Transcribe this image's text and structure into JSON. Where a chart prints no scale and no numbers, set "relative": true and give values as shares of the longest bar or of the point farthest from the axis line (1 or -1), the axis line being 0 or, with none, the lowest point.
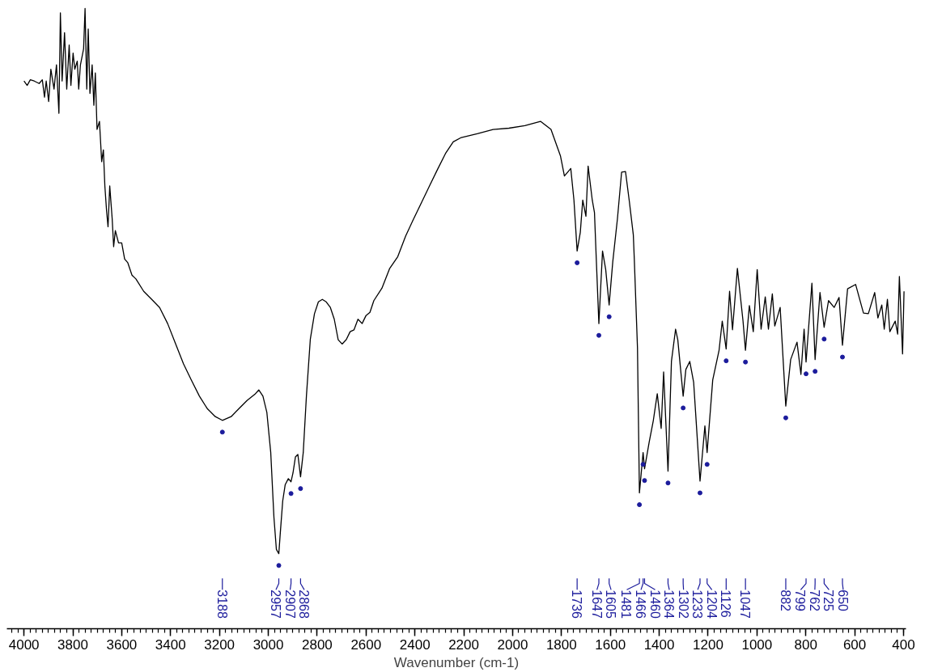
{
  "chart_data": {
    "type": "line",
    "relative": true,
    "xlabel": "Wavenumber (cm-1)",
    "xlim": [
      4070,
      390
    ],
    "xticks": [
      4000,
      3800,
      3600,
      3400,
      3200,
      3000,
      2800,
      2600,
      2400,
      2200,
      2000,
      1800,
      1600,
      1400,
      1200,
      1000,
      800,
      600,
      400
    ],
    "tick_labels": "x",
    "grid": false,
    "series": [
      {
        "color": "#000000",
        "x": [
          4000,
          3987,
          3974,
          3958,
          3938,
          3925,
          3916,
          3909,
          3899,
          3890,
          3877,
          3867,
          3857,
          3851,
          3844,
          3834,
          3825,
          3815,
          3808,
          3799,
          3792,
          3782,
          3776,
          3769,
          3756,
          3750,
          3743,
          3737,
          3730,
          3721,
          3714,
          3708,
          3701,
          3691,
          3682,
          3675,
          3669,
          3662,
          3656,
          3649,
          3639,
          3633,
          3626,
          3613,
          3600,
          3588,
          3575,
          3558,
          3542,
          3510,
          3477,
          3445,
          3412,
          3380,
          3347,
          3315,
          3282,
          3250,
          3217,
          3188,
          3152,
          3120,
          3087,
          3055,
          3039,
          3022,
          3006,
          2990,
          2977,
          2967,
          2957,
          2951,
          2941,
          2931,
          2918,
          2907,
          2899,
          2889,
          2879,
          2868,
          2857,
          2844,
          2828,
          2811,
          2795,
          2779,
          2763,
          2746,
          2730,
          2714,
          2698,
          2681,
          2665,
          2649,
          2633,
          2616,
          2600,
          2584,
          2568,
          2535,
          2503,
          2470,
          2438,
          2405,
          2373,
          2340,
          2308,
          2275,
          2243,
          2210,
          2145,
          2080,
          2015,
          1950,
          1886,
          1843,
          1804,
          1788,
          1762,
          1749,
          1736,
          1723,
          1713,
          1700,
          1691,
          1674,
          1665,
          1658,
          1647,
          1642,
          1632,
          1619,
          1605,
          1590,
          1571,
          1554,
          1538,
          1522,
          1506,
          1502,
          1489,
          1481,
          1466,
          1460,
          1441,
          1424,
          1408,
          1392,
          1382,
          1364,
          1350,
          1333,
          1324,
          1302,
          1291,
          1275,
          1259,
          1233,
          1213,
          1204,
          1181,
          1155,
          1142,
          1126,
          1112,
          1100,
          1080,
          1057,
          1047,
          1031,
          1015,
          999,
          983,
          966,
          953,
          937,
          927,
          905,
          882,
          862,
          836,
          820,
          807,
          799,
          775,
          762,
          742,
          725,
          707,
          684,
          664,
          650,
          629,
          596,
          564,
          544,
          518,
          505,
          489,
          479,
          466,
          456,
          434,
          424,
          417,
          404,
          398
        ],
        "values": [
          0.883,
          0.876,
          0.885,
          0.883,
          0.879,
          0.885,
          0.857,
          0.883,
          0.85,
          0.902,
          0.87,
          0.909,
          0.831,
          0.993,
          0.883,
          0.961,
          0.87,
          0.941,
          0.876,
          0.928,
          0.902,
          0.915,
          0.87,
          0.909,
          0.935,
          1.0,
          0.87,
          0.967,
          0.863,
          0.909,
          0.844,
          0.896,
          0.805,
          0.818,
          0.753,
          0.772,
          0.714,
          0.674,
          0.648,
          0.714,
          0.661,
          0.616,
          0.642,
          0.622,
          0.622,
          0.596,
          0.59,
          0.57,
          0.564,
          0.544,
          0.531,
          0.518,
          0.492,
          0.46,
          0.427,
          0.401,
          0.375,
          0.355,
          0.342,
          0.336,
          0.342,
          0.355,
          0.368,
          0.378,
          0.385,
          0.375,
          0.349,
          0.284,
          0.18,
          0.128,
          0.121,
          0.154,
          0.206,
          0.232,
          0.242,
          0.237,
          0.251,
          0.277,
          0.281,
          0.245,
          0.284,
          0.375,
          0.467,
          0.508,
          0.527,
          0.531,
          0.527,
          0.518,
          0.499,
          0.466,
          0.459,
          0.466,
          0.479,
          0.482,
          0.499,
          0.492,
          0.505,
          0.51,
          0.529,
          0.549,
          0.581,
          0.6,
          0.633,
          0.661,
          0.687,
          0.714,
          0.74,
          0.766,
          0.785,
          0.792,
          0.798,
          0.805,
          0.807,
          0.811,
          0.818,
          0.805,
          0.762,
          0.73,
          0.742,
          0.691,
          0.609,
          0.639,
          0.691,
          0.665,
          0.746,
          0.691,
          0.671,
          0.6,
          0.492,
          0.531,
          0.609,
          0.579,
          0.522,
          0.592,
          0.661,
          0.736,
          0.737,
          0.688,
          0.635,
          0.596,
          0.453,
          0.219,
          0.284,
          0.258,
          0.301,
          0.336,
          0.379,
          0.323,
          0.414,
          0.254,
          0.431,
          0.483,
          0.466,
          0.375,
          0.418,
          0.431,
          0.397,
          0.238,
          0.327,
          0.284,
          0.401,
          0.449,
          0.496,
          0.451,
          0.544,
          0.482,
          0.581,
          0.496,
          0.449,
          0.521,
          0.479,
          0.579,
          0.483,
          0.535,
          0.483,
          0.54,
          0.488,
          0.518,
          0.359,
          0.434,
          0.462,
          0.41,
          0.483,
          0.43,
          0.557,
          0.434,
          0.542,
          0.486,
          0.529,
          0.518,
          0.534,
          0.457,
          0.548,
          0.555,
          0.509,
          0.508,
          0.542,
          0.501,
          0.522,
          0.483,
          0.531,
          0.479,
          0.496,
          0.475,
          0.568,
          0.443,
          0.544
        ]
      },
      {
        "type": "scatter",
        "color": "#1c1c9c",
        "marker": "circle",
        "x": [
          3188,
          2957,
          2907,
          2868,
          1736,
          1647,
          1605,
          1481,
          1466,
          1460,
          1364,
          1302,
          1233,
          1204,
          1126,
          1047,
          882,
          799,
          762,
          725,
          650
        ],
        "values": [
          0.317,
          0.102,
          0.218,
          0.226,
          0.59,
          0.473,
          0.503,
          0.2,
          0.265,
          0.239,
          0.235,
          0.356,
          0.219,
          0.265,
          0.432,
          0.43,
          0.34,
          0.411,
          0.415,
          0.467,
          0.438
        ]
      }
    ],
    "annotations": [
      "3188",
      "2957",
      "2907",
      "2868",
      "1736",
      "1647",
      "1605",
      "1481",
      "1466",
      "1460",
      "1364",
      "1302",
      "1233",
      "1204",
      "1126",
      "1047",
      "882",
      "799",
      "762",
      "725",
      "650"
    ]
  }
}
